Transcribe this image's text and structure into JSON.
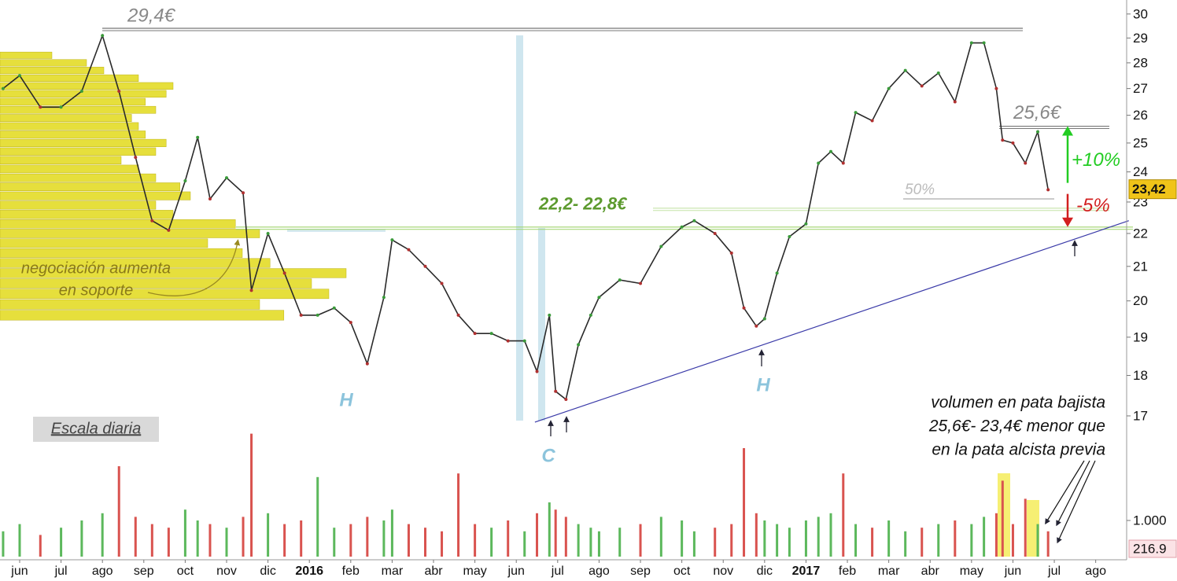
{
  "chart_data": {
    "type": "line",
    "log_scale": true,
    "xlim": [
      -0.475,
      26.71
    ],
    "ylim": [
      16.7,
      30.6
    ],
    "yticks": [
      17,
      18,
      19,
      20,
      21,
      22,
      23,
      24,
      25,
      26,
      27,
      28,
      29,
      30
    ],
    "xticks": [
      {
        "value": 0,
        "label": "jun"
      },
      {
        "value": 1,
        "label": "jul"
      },
      {
        "value": 2,
        "label": "ago"
      },
      {
        "value": 3,
        "label": "sep"
      },
      {
        "value": 4,
        "label": "oct"
      },
      {
        "value": 5,
        "label": "nov"
      },
      {
        "value": 6,
        "label": "dic"
      },
      {
        "value": 7,
        "label": "2016"
      },
      {
        "value": 8,
        "label": "feb"
      },
      {
        "value": 9,
        "label": "mar"
      },
      {
        "value": 10,
        "label": "abr"
      },
      {
        "value": 11,
        "label": "may"
      },
      {
        "value": 12,
        "label": "jun"
      },
      {
        "value": 13,
        "label": "jul"
      },
      {
        "value": 14,
        "label": "ago"
      },
      {
        "value": 15,
        "label": "sep"
      },
      {
        "value": 16,
        "label": "oct"
      },
      {
        "value": 17,
        "label": "nov"
      },
      {
        "value": 18,
        "label": "dic"
      },
      {
        "value": 19,
        "label": "2017"
      },
      {
        "value": 20,
        "label": "feb"
      },
      {
        "value": 21,
        "label": "mar"
      },
      {
        "value": 22,
        "label": "abr"
      },
      {
        "value": 23,
        "label": "may"
      },
      {
        "value": 24,
        "label": "jun"
      },
      {
        "value": 25,
        "label": "jul"
      },
      {
        "value": 26,
        "label": "ago"
      }
    ],
    "x": [
      -0.4,
      0,
      0.5,
      1,
      1.5,
      2,
      2.4,
      2.8,
      3.2,
      3.6,
      4,
      4.3,
      4.6,
      5,
      5.4,
      5.6,
      6,
      6.4,
      6.8,
      7.2,
      7.6,
      8,
      8.4,
      8.8,
      9,
      9.4,
      9.8,
      10.2,
      10.6,
      11,
      11.4,
      11.8,
      12.2,
      12.5,
      12.8,
      12.95,
      13.2,
      13.5,
      13.8,
      14,
      14.5,
      15,
      15.5,
      16,
      16.3,
      16.8,
      17.2,
      17.5,
      17.8,
      18,
      18.3,
      18.6,
      19,
      19.3,
      19.6,
      19.9,
      20.2,
      20.6,
      21,
      21.4,
      21.8,
      22.2,
      22.6,
      23,
      23.3,
      23.6,
      23.75,
      24,
      24.3,
      24.6,
      24.85
    ],
    "values": [
      27.0,
      27.5,
      26.3,
      26.3,
      26.9,
      29.1,
      26.9,
      24.5,
      22.4,
      22.1,
      23.7,
      25.2,
      23.1,
      23.8,
      23.3,
      20.3,
      22.0,
      20.8,
      19.6,
      19.6,
      19.8,
      19.4,
      18.3,
      20.1,
      21.8,
      21.5,
      21.0,
      20.5,
      19.6,
      19.1,
      19.1,
      18.9,
      18.9,
      18.1,
      19.6,
      17.6,
      17.4,
      18.8,
      19.6,
      20.1,
      20.6,
      20.5,
      21.6,
      22.2,
      22.4,
      22.0,
      21.4,
      19.8,
      19.3,
      19.5,
      20.8,
      21.9,
      22.3,
      24.3,
      24.7,
      24.3,
      26.1,
      25.8,
      27.0,
      27.7,
      27.1,
      27.6,
      26.5,
      28.8,
      28.8,
      27.0,
      25.1,
      25.0,
      24.3,
      25.4,
      23.4
    ],
    "color": "#2a2a2a",
    "last_value": {
      "value": 23.42,
      "label": "23,42"
    },
    "volume": {
      "values": [
        700,
        900,
        600,
        800,
        1000,
        1200,
        2500,
        1100,
        900,
        800,
        1300,
        1000,
        900,
        800,
        1100,
        3400,
        1200,
        900,
        1000,
        2200,
        800,
        900,
        1100,
        1000,
        1300,
        900,
        800,
        700,
        2300,
        900,
        800,
        1000,
        700,
        1200,
        1500,
        1300,
        1100,
        900,
        800,
        700,
        800,
        900,
        1100,
        1000,
        700,
        800,
        900,
        3000,
        1200,
        1000,
        900,
        800,
        1000,
        1100,
        1200,
        2300,
        900,
        800,
        1000,
        700,
        800,
        900,
        1000,
        900,
        1100,
        1200,
        2100,
        900,
        1600,
        900,
        700
      ],
      "ylim": [
        0,
        3500
      ],
      "yticks": [
        {
          "value": 1000,
          "label": "1.000"
        }
      ],
      "last_value": 216.9,
      "up_color": "#5cb85c",
      "down_color": "#d9534f"
    },
    "volume_profile": {
      "prices": [
        19.6,
        19.9,
        20.2,
        20.5,
        20.8,
        21.1,
        21.4,
        21.7,
        22.0,
        22.3,
        22.6,
        22.9,
        23.2,
        23.5,
        23.8,
        24.1,
        24.4,
        24.7,
        25.0,
        25.3,
        25.6,
        25.9,
        26.2,
        26.5,
        26.8,
        27.1,
        27.4,
        27.7,
        28.0,
        28.3
      ],
      "values": [
        82,
        75,
        95,
        90,
        100,
        78,
        70,
        60,
        75,
        68,
        50,
        45,
        55,
        52,
        45,
        40,
        35,
        45,
        48,
        42,
        40,
        38,
        45,
        42,
        48,
        50,
        40,
        30,
        25,
        15
      ],
      "color": "#e6df3c"
    },
    "trendline": {
      "x": [
        12.45,
        26.8
      ],
      "values": [
        16.85,
        22.4
      ],
      "color": "#3a3aa8"
    },
    "levels": [
      {
        "value": 29.4,
        "label": "29,4€"
      },
      {
        "value": 25.6,
        "label": "25,6€"
      },
      {
        "value": 22.2
      },
      {
        "value": 22.8
      },
      {
        "value": 23.1,
        "label": "50%"
      }
    ],
    "zone_label": "22,2- 22,8€",
    "up_label": "+10%",
    "down_label": "-5%",
    "pattern_labels": [
      "H",
      "C",
      "H"
    ],
    "notes": {
      "profile": [
        "negociación aumenta",
        "en soporte"
      ],
      "scale": "Escala diaria",
      "volume": [
        "volumen en pata bajista",
        "25,6€- 23,4€ menor que",
        "en la pata alcista previa"
      ]
    }
  }
}
